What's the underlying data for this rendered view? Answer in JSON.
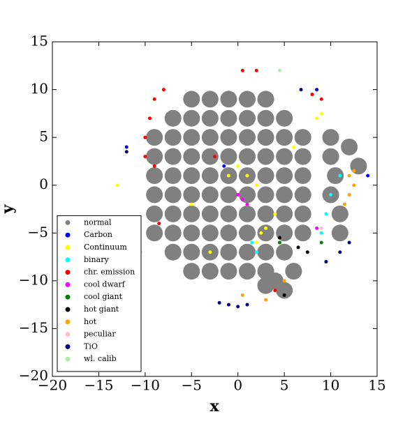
{
  "chart_data": {
    "type": "scatter",
    "x_label": "x",
    "y_label": "y",
    "xlim": [
      -20,
      15
    ],
    "ylim": [
      -20,
      15
    ],
    "xticks": [
      {
        "value": -20,
        "label": "−20"
      },
      {
        "value": -15,
        "label": "−15"
      },
      {
        "value": -10,
        "label": "−10"
      },
      {
        "value": -5,
        "label": "−5"
      },
      0,
      5,
      10,
      15
    ],
    "yticks": [
      {
        "value": -20,
        "label": "−20"
      },
      {
        "value": -15,
        "label": "−15"
      },
      {
        "value": -10,
        "label": "−10"
      },
      {
        "value": -5,
        "label": "−5"
      },
      0,
      5,
      10,
      15
    ],
    "legend": "lower left",
    "series": [
      {
        "name": "normal",
        "color": "#808080",
        "x": [
          -9,
          -9,
          -9,
          -9,
          -9,
          -9,
          -7,
          -7,
          -7,
          -7,
          -7,
          -7,
          -7,
          -7,
          -5,
          -5,
          -5,
          -5,
          -5,
          -5,
          -5,
          -5,
          -5,
          -5,
          -3,
          -3,
          -3,
          -3,
          -3,
          -3,
          -3,
          -3,
          -3,
          -3,
          -1,
          -1,
          -1,
          -1,
          -1,
          -1,
          -1,
          -1,
          -1,
          -1,
          1,
          1,
          1,
          1,
          1,
          1,
          1,
          1,
          1,
          1,
          3,
          3,
          3,
          3,
          3,
          3,
          3,
          3,
          3,
          3,
          5,
          5,
          5,
          5,
          5,
          5,
          5,
          5,
          7,
          7,
          7,
          7,
          7,
          7,
          10,
          10.5,
          10,
          11,
          12,
          13,
          10,
          11,
          4,
          5,
          3,
          6
        ],
        "y": [
          -5,
          -3,
          -1,
          1,
          3,
          5,
          -7,
          -5,
          -3,
          -1,
          1,
          3,
          5,
          7,
          -9,
          -7,
          -5,
          -3,
          -1,
          1,
          3,
          5,
          7,
          9,
          -9,
          -7,
          -5,
          -3,
          -1,
          1,
          3,
          5,
          7,
          9,
          -9,
          -7,
          -5,
          -3,
          -1,
          1,
          3,
          5,
          7,
          9,
          -9,
          -7,
          -5,
          -3,
          -1,
          1,
          3,
          5,
          7,
          9,
          -9,
          -7,
          -5,
          -3,
          -1,
          1,
          3,
          5,
          7,
          9,
          -7,
          -5,
          -3,
          -1,
          1,
          3,
          5,
          7,
          -5,
          -3,
          -1,
          1,
          3,
          5,
          3,
          1,
          -1,
          -3,
          4,
          2,
          5,
          -5,
          -10,
          -11,
          -10.5,
          -9
        ]
      },
      {
        "name": "Carbon",
        "color": "#0000ff",
        "x": [
          14,
          -12,
          8.5,
          -1.5
        ],
        "y": [
          1,
          4,
          10,
          2
        ]
      },
      {
        "name": "Continuum",
        "color": "#ffff00",
        "x": [
          1,
          0,
          2.5,
          3,
          2,
          1,
          -1,
          2,
          8.5,
          9,
          -13,
          -5,
          4,
          6,
          -3
        ],
        "y": [
          1,
          2,
          -5,
          -4.5,
          -6,
          -2,
          1,
          0,
          7,
          7.5,
          0,
          -2,
          -3,
          4,
          -7
        ]
      },
      {
        "name": "binary",
        "color": "#00ffff",
        "x": [
          10,
          9.5,
          9,
          11,
          2,
          1.5
        ],
        "y": [
          -1,
          -3,
          -5,
          1,
          -7,
          -6
        ]
      },
      {
        "name": "chr. emission",
        "color": "#ff0000",
        "x": [
          -10,
          -9.5,
          -9,
          -8,
          -10,
          -9,
          -2.5,
          8,
          9,
          0.5,
          2,
          -8.5,
          4
        ],
        "y": [
          5,
          7,
          9,
          10,
          3,
          2,
          3,
          9.5,
          9,
          12,
          12,
          -4,
          -11
        ]
      },
      {
        "name": "cool dwarf",
        "color": "#ff00ff",
        "x": [
          0,
          0.5,
          1,
          8.5
        ],
        "y": [
          -1,
          -1.5,
          -2,
          -4.5
        ]
      },
      {
        "name": "cool giant",
        "color": "#008000",
        "x": [
          4.5,
          9
        ],
        "y": [
          -6,
          -6
        ]
      },
      {
        "name": "hot giant",
        "color": "#000000",
        "x": [
          6.5,
          7.5,
          5,
          4.5
        ],
        "y": [
          -6.5,
          -7,
          -11.5,
          -5.5
        ]
      },
      {
        "name": "hot",
        "color": "#ffa500",
        "x": [
          12,
          12.5,
          12,
          11.5,
          12.5,
          3,
          0.5,
          5
        ],
        "y": [
          1,
          0,
          -1,
          -2,
          1.5,
          -12,
          -11.5,
          -10
        ]
      },
      {
        "name": "peculiar",
        "color": "#ffc0cb",
        "x": [
          9
        ],
        "y": [
          -4.5
        ]
      },
      {
        "name": "TiO",
        "color": "#000080",
        "x": [
          -1,
          0,
          1,
          -2,
          9.5,
          11,
          12,
          6.8,
          -12
        ],
        "y": [
          -12.5,
          -12.7,
          -12.5,
          -12.3,
          -8,
          -7,
          -6,
          10,
          3.5
        ]
      },
      {
        "name": "wl. calib",
        "color": "#aaeeaa",
        "x": [
          4.5,
          -10.5
        ],
        "y": [
          12,
          -7
        ]
      }
    ]
  }
}
